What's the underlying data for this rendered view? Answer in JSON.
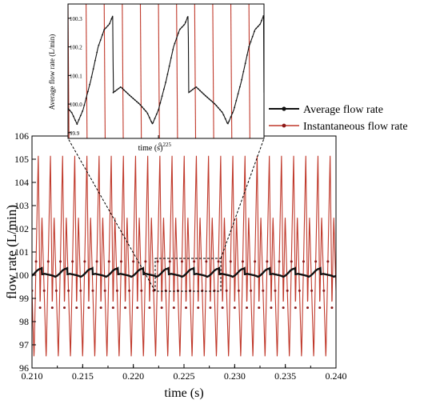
{
  "colors": {
    "average": "#111111",
    "instantaneous": "#c0392b",
    "marker": "#8b1a1a"
  },
  "chart_data": [
    {
      "id": "main",
      "type": "line",
      "xlabel": "time (s)",
      "ylabel": "flow rate (L/min)",
      "xlim": [
        0.21,
        0.24
      ],
      "ylim": [
        96,
        106
      ],
      "xticks": [
        "0.210",
        "0.215",
        "0.220",
        "0.225",
        "0.230",
        "0.235",
        "0.240"
      ],
      "yticks": [
        "96",
        "97",
        "98",
        "99",
        "100",
        "101",
        "102",
        "103",
        "104",
        "105",
        "106"
      ],
      "series": [
        {
          "name": "Average flow rate",
          "period": 0.0025,
          "mean": 100.1,
          "min": 99.93,
          "max": 100.3
        },
        {
          "name": "Instantaneous flow rate",
          "period": 0.0012,
          "min": 96.4,
          "max": 105.2
        }
      ],
      "grid": false,
      "legend": "above-right"
    },
    {
      "id": "inset",
      "type": "line",
      "xlabel": "time (s)",
      "ylabel": "Average flow rate (L/min)",
      "xlim": [
        0.222,
        0.2285
      ],
      "ylim": [
        99.88,
        100.35
      ],
      "xticks": [
        "0.225"
      ],
      "yticks": [
        "99.9",
        "100.0",
        "100.1",
        "100.2",
        "100.3"
      ],
      "series": [
        {
          "name": "Average flow rate",
          "period": 0.0025,
          "min": 99.93,
          "max": 100.31
        },
        {
          "name": "Instantaneous flow rate",
          "period": 0.0012
        }
      ]
    }
  ],
  "legend": {
    "items": [
      {
        "label": "Average flow rate"
      },
      {
        "label": "Instantaneous flow rate"
      }
    ]
  }
}
